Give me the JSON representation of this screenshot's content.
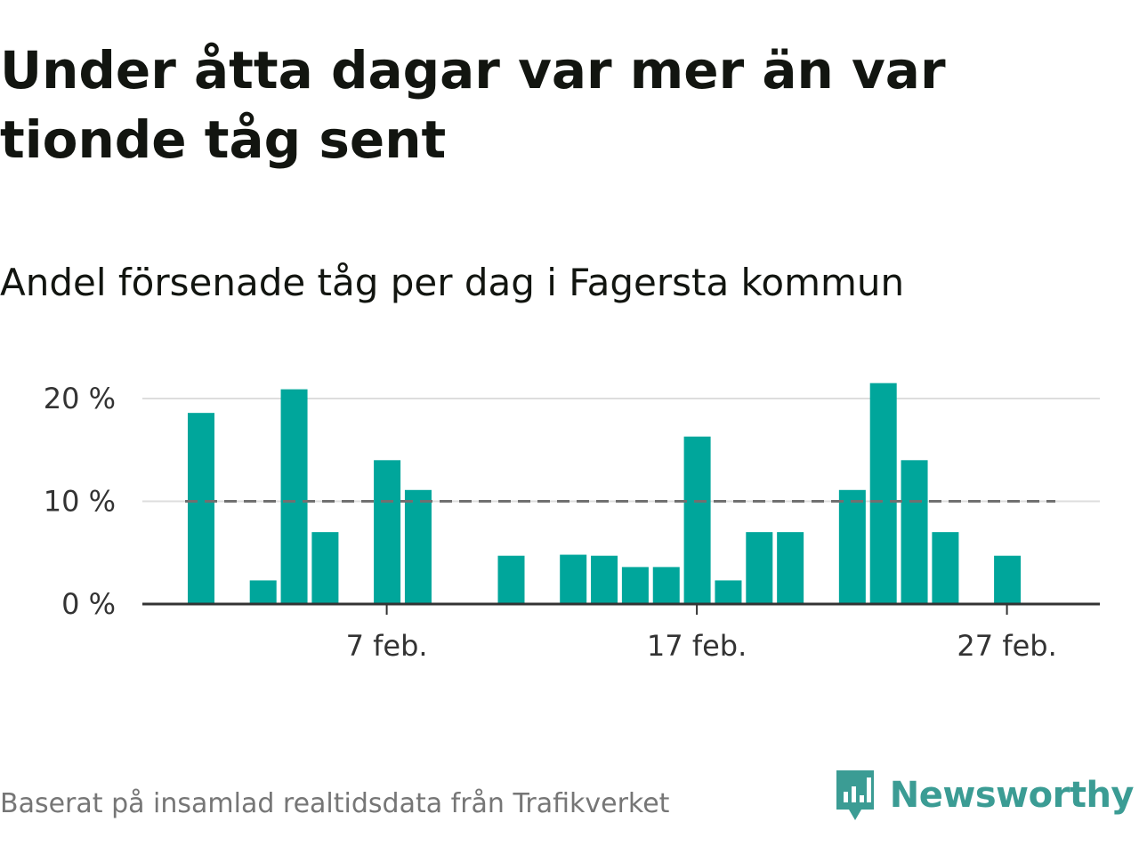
{
  "title": "Under åtta dagar var mer än var tionde tåg sent",
  "subtitle": "Andel försenade tåg per dag i Fagersta kommun",
  "source": "Baserat på insamlad realtidsdata från Trafikverket",
  "brand": {
    "name": "Newsworthy",
    "color": "#3b9c94"
  },
  "colors": {
    "bar": "#00a69b",
    "reference": "#707070",
    "grid": "#dddddd",
    "axis": "#333333"
  },
  "chart_data": {
    "type": "bar",
    "title": "Andel försenade tåg per dag i Fagersta kommun",
    "x": [
      "2024-02-01",
      "2024-02-02",
      "2024-02-03",
      "2024-02-04",
      "2024-02-05",
      "2024-02-06",
      "2024-02-07",
      "2024-02-08",
      "2024-02-09",
      "2024-02-10",
      "2024-02-11",
      "2024-02-12",
      "2024-02-13",
      "2024-02-14",
      "2024-02-15",
      "2024-02-16",
      "2024-02-17",
      "2024-02-18",
      "2024-02-19",
      "2024-02-20",
      "2024-02-21",
      "2024-02-22",
      "2024-02-23",
      "2024-02-24",
      "2024-02-25",
      "2024-02-26",
      "2024-02-27",
      "2024-02-28",
      "2024-02-29"
    ],
    "values": [
      18.6,
      0,
      2.3,
      20.9,
      7.0,
      0,
      14.0,
      11.1,
      0,
      0,
      4.7,
      0,
      4.8,
      4.7,
      3.6,
      3.6,
      16.3,
      2.3,
      7.0,
      7.0,
      0,
      11.1,
      21.5,
      14.0,
      7.0,
      0,
      4.7,
      0,
      0
    ],
    "ylim": [
      0,
      22
    ],
    "yticks": [
      0,
      10,
      20
    ],
    "ytick_labels": [
      "0 %",
      "10 %",
      "20 %"
    ],
    "xticks": [
      "2024-02-07",
      "2024-02-17",
      "2024-02-27"
    ],
    "xtick_labels": [
      "7 feb.",
      "17 feb.",
      "27 feb."
    ],
    "reference_line": 10,
    "grid": true,
    "xlabel": "",
    "ylabel": ""
  }
}
